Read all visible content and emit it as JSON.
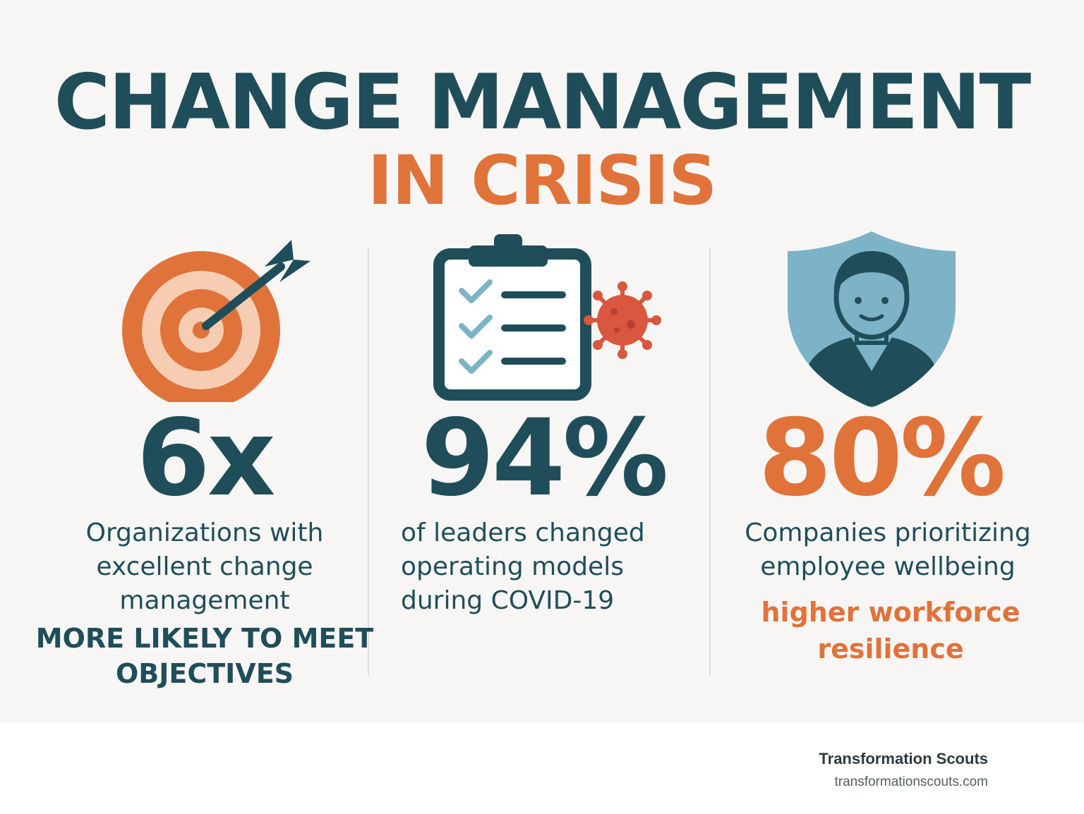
{
  "title": {
    "line1": "CHANGE MANAGEMENT",
    "line2": "IN CRISIS"
  },
  "stats": [
    {
      "icon": "target-arrow-icon",
      "value": "6x",
      "description": "Organizations with excellent change management",
      "highlight": "MORE LIKELY TO MEET OBJECTIVES"
    },
    {
      "icon": "clipboard-virus-icon",
      "value": "94%",
      "description": "of leaders changed operating models during COVID-19"
    },
    {
      "icon": "shield-person-icon",
      "value": "80%",
      "description": "Companies prioritizing employee wellbeing",
      "highlight": "higher workforce resilience"
    }
  ],
  "footer": {
    "brand": "Transformation Scouts",
    "url": "transformationscouts.com"
  },
  "colors": {
    "teal": "#1f4e5a",
    "orange": "#e0733a",
    "peach": "#f6cdb3",
    "light_blue": "#7db3c6",
    "background": "#f7f6f4"
  }
}
